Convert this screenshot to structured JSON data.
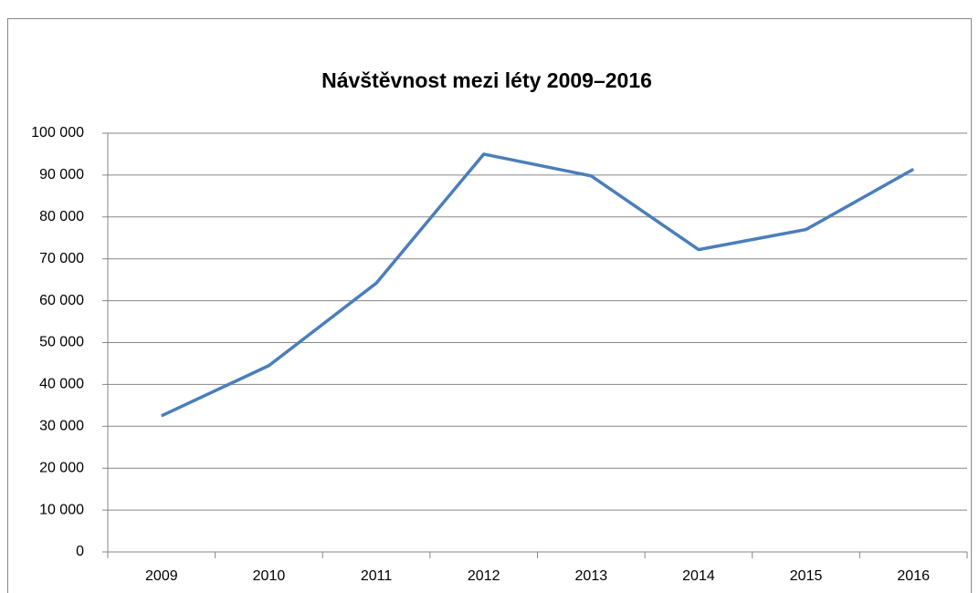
{
  "chart_data": {
    "type": "line",
    "title": "Návštěvnost mezi léty 2009–2016",
    "categories": [
      "2009",
      "2010",
      "2011",
      "2012",
      "2013",
      "2014",
      "2015",
      "2016"
    ],
    "series": [
      {
        "name": "Návštěvnost",
        "color": "#4a7ebb",
        "values": [
          32500,
          44500,
          64200,
          95000,
          89800,
          72200,
          77000,
          91400
        ]
      }
    ],
    "ylim": [
      0,
      100000
    ],
    "yticks": [
      0,
      {
        "value": 10000,
        "label": "10 000"
      },
      {
        "value": 20000,
        "label": "20 000"
      },
      {
        "value": 30000,
        "label": "30 000"
      },
      {
        "value": 40000,
        "label": "40 000"
      },
      {
        "value": 50000,
        "label": "50 000"
      },
      {
        "value": 60000,
        "label": "60 000"
      },
      {
        "value": 70000,
        "label": "70 000"
      },
      {
        "value": 80000,
        "label": "80 000"
      },
      {
        "value": 90000,
        "label": "90 000"
      },
      {
        "value": 100000,
        "label": "100 000"
      }
    ],
    "grid": true
  }
}
